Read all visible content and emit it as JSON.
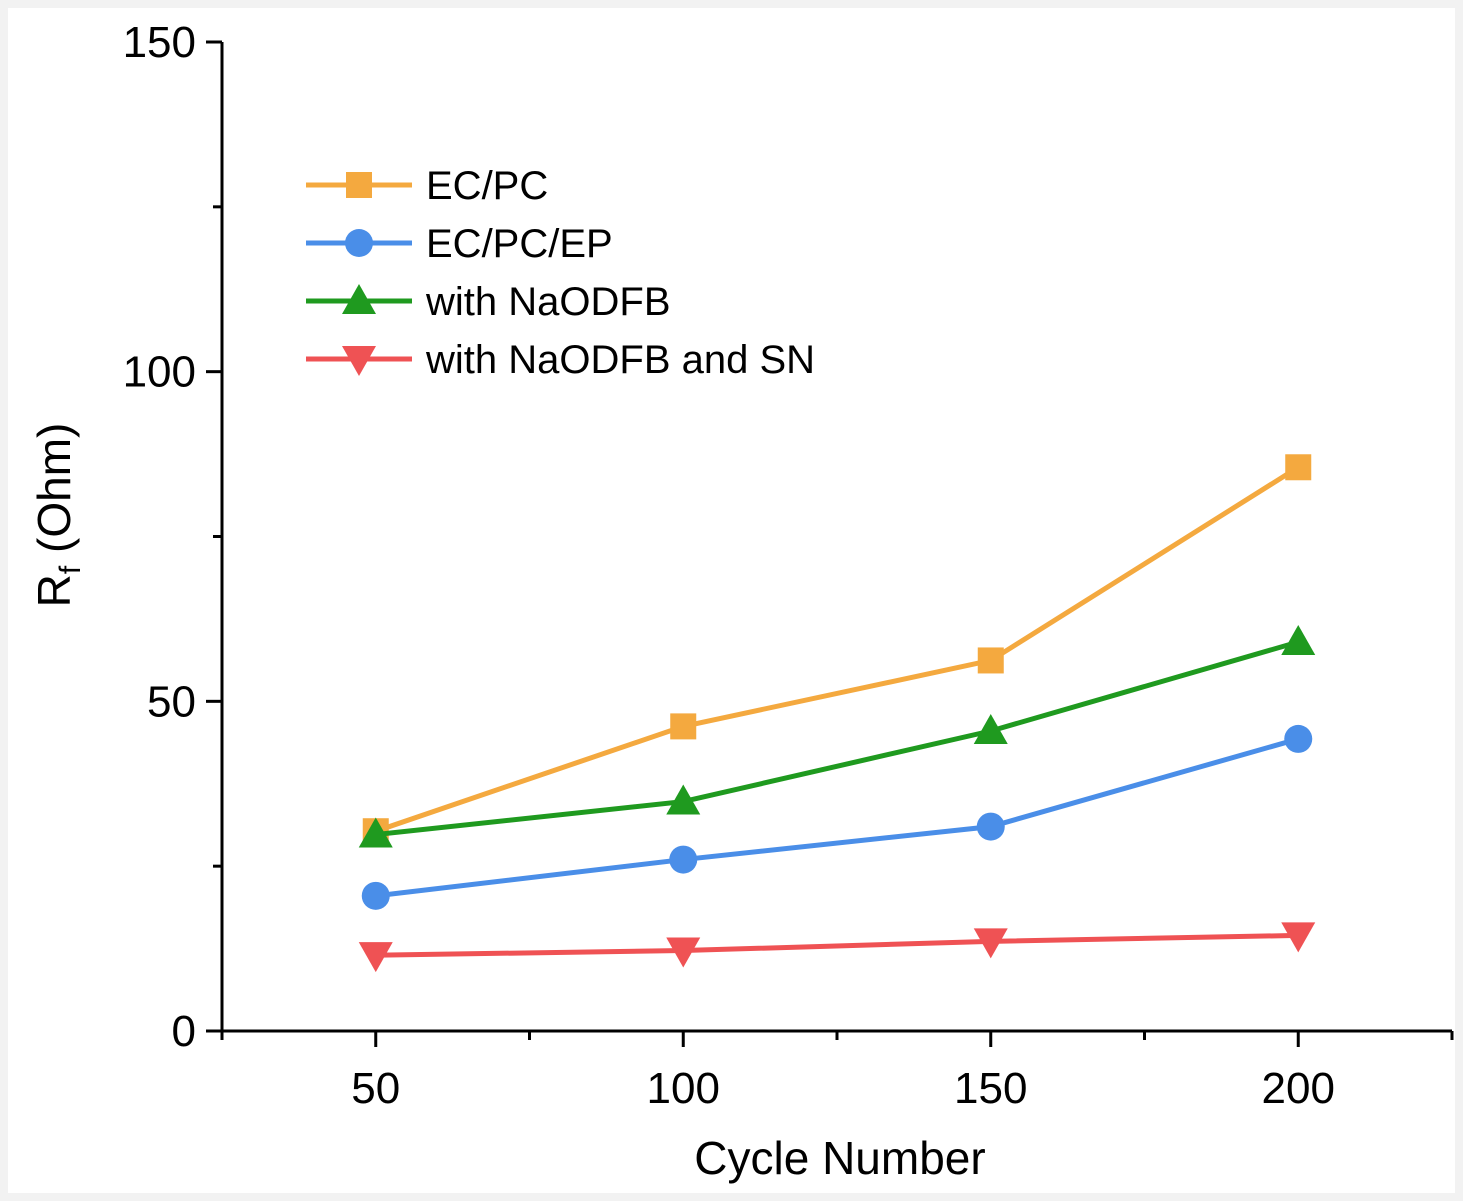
{
  "chart_data": {
    "type": "line",
    "x": [
      50,
      100,
      150,
      200
    ],
    "xlabel": "Cycle Number",
    "ylabel_main": "R",
    "ylabel_sub": "f",
    "ylabel_rest": " (Ohm)",
    "xlim": [
      25,
      225
    ],
    "ylim": [
      0,
      150
    ],
    "xticks": [
      50,
      100,
      150,
      200
    ],
    "yticks": [
      0,
      50,
      100,
      150
    ],
    "x_minor": [
      75,
      125,
      175
    ],
    "y_minor": [
      25,
      75,
      125
    ],
    "legend_position": "top-left",
    "series": [
      {
        "name": "EC/PC",
        "values": [
          30.3,
          46.2,
          56.2,
          85.5
        ],
        "color": "#f4a93f",
        "marker": "square"
      },
      {
        "name": "EC/PC/EP",
        "values": [
          20.5,
          26.0,
          31.0,
          44.3
        ],
        "color": "#4a8ee8",
        "marker": "circle"
      },
      {
        "name": "with NaODFB",
        "values": [
          29.8,
          34.8,
          45.5,
          59.0
        ],
        "color": "#1f9a1f",
        "marker": "triangle-up"
      },
      {
        "name": "with NaODFB and SN",
        "values": [
          11.5,
          12.2,
          13.6,
          14.5
        ],
        "color": "#ef5254",
        "marker": "triangle-down"
      }
    ]
  }
}
